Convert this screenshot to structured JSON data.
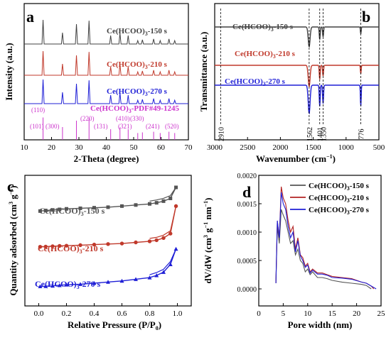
{
  "chart_data": [
    {
      "panel": "a",
      "type": "line",
      "xlabel": "2-Theta (degree)",
      "ylabel": "Intensity (a.u.)",
      "xlim": [
        10,
        70
      ],
      "xticks": [
        "10",
        "20",
        "30",
        "40",
        "50",
        "60",
        "70"
      ],
      "grid": false,
      "peaks": [
        16.9,
        24.0,
        29.1,
        33.7,
        41.6,
        45.0,
        48.0,
        51.5,
        53.2,
        57.3,
        59.7,
        62.9,
        65.0
      ],
      "series": [
        {
          "name": "Ce(HCOO)3-150 s",
          "color": "#404040",
          "heights": [
            0.85,
            0.4,
            0.7,
            0.82,
            0.3,
            0.38,
            0.3,
            0.12,
            0.15,
            0.18,
            0.12,
            0.18,
            0.12
          ]
        },
        {
          "name": "Ce(HCOO)3-210 s",
          "color": "#c0392b",
          "heights": [
            0.85,
            0.4,
            0.7,
            0.82,
            0.3,
            0.38,
            0.3,
            0.12,
            0.15,
            0.18,
            0.12,
            0.18,
            0.12
          ]
        },
        {
          "name": "Ce(HCOO)3-270 s",
          "color": "#1f1fd6",
          "heights": [
            0.85,
            0.4,
            0.7,
            0.82,
            0.3,
            0.38,
            0.3,
            0.12,
            0.15,
            0.18,
            0.12,
            0.18,
            0.12
          ]
        }
      ],
      "reference": {
        "name": "Ce(HCOO)3-PDF#49-1245",
        "color": "#cc33cc",
        "lines": [
          16.9,
          24.0,
          29.1,
          33.7,
          41.6,
          45.0,
          48.0,
          51.5,
          53.2,
          57.3,
          59.7,
          62.9,
          65.0
        ],
        "hkl": [
          "(110)",
          "(101)",
          "(300)",
          "(220)",
          "(131)",
          "(410)",
          "(330)",
          "(321)",
          "(241)",
          "(520)"
        ]
      }
    },
    {
      "panel": "b",
      "type": "line",
      "xlabel": "Wavenumber (cm−1)",
      "ylabel": "Transmittance (a.u.)",
      "xlim": [
        3000,
        500
      ],
      "xticks": [
        "3000",
        "2500",
        "2000",
        "1500",
        "1000",
        "500"
      ],
      "grid": false,
      "bands": [
        2910,
        1562,
        1401,
        1350,
        776
      ],
      "band_labels": [
        "2910",
        "1562",
        "1401",
        "1350",
        "776"
      ],
      "series": [
        {
          "name": "Ce(HCOO)3-150 s",
          "color": "#404040"
        },
        {
          "name": "Ce(HCOO)3-210 s",
          "color": "#c0392b"
        },
        {
          "name": "Ce(HCOO)3-270 s",
          "color": "#1f1fd6"
        }
      ]
    },
    {
      "panel": "c",
      "type": "line",
      "xlabel": "Relative Pressure (P/P0)",
      "ylabel": "Quantity adsorbed (cm3 g−1)",
      "xlim": [
        -0.1,
        1.1
      ],
      "xticks": [
        "0.0",
        "0.2",
        "0.4",
        "0.6",
        "0.8",
        "1.0"
      ],
      "grid": false,
      "series": [
        {
          "name": "Ce(HCOO)3-150 s",
          "color": "#555555",
          "marker": "square",
          "x": [
            0.01,
            0.05,
            0.1,
            0.15,
            0.2,
            0.3,
            0.4,
            0.5,
            0.6,
            0.7,
            0.8,
            0.85,
            0.9,
            0.95,
            0.99
          ],
          "y": [
            0.785,
            0.79,
            0.795,
            0.8,
            0.805,
            0.81,
            0.815,
            0.82,
            0.83,
            0.84,
            0.85,
            0.86,
            0.875,
            0.9,
            1.0
          ]
        },
        {
          "name": "Ce(HCOO)3-210 s",
          "color": "#c0392b",
          "marker": "circle",
          "x": [
            0.01,
            0.05,
            0.1,
            0.15,
            0.2,
            0.3,
            0.4,
            0.5,
            0.6,
            0.7,
            0.8,
            0.85,
            0.9,
            0.95,
            0.99
          ],
          "y": [
            0.46,
            0.462,
            0.465,
            0.468,
            0.47,
            0.475,
            0.48,
            0.485,
            0.49,
            0.5,
            0.51,
            0.52,
            0.54,
            0.58,
            0.83
          ]
        },
        {
          "name": "Ce(HCOO)3-270 s",
          "color": "#1f1fd6",
          "marker": "triangle",
          "x": [
            0.01,
            0.05,
            0.1,
            0.15,
            0.2,
            0.3,
            0.4,
            0.5,
            0.6,
            0.7,
            0.8,
            0.85,
            0.9,
            0.95,
            0.99
          ],
          "y": [
            0.1,
            0.102,
            0.105,
            0.11,
            0.115,
            0.12,
            0.13,
            0.14,
            0.15,
            0.165,
            0.18,
            0.2,
            0.23,
            0.3,
            0.44
          ]
        }
      ]
    },
    {
      "panel": "d",
      "type": "line",
      "xlabel": "Pore width (nm)",
      "ylabel": "dV/dW (cm3 g−1 nm−1)",
      "xlim": [
        0,
        25
      ],
      "ylim": [
        -0.0003,
        0.002
      ],
      "xticks": [
        "0",
        "5",
        "10",
        "15",
        "20",
        "25"
      ],
      "yticks": [
        "0.0000",
        "0.0005",
        "0.0010",
        "0.0015",
        "0.0020"
      ],
      "legend": "top-right",
      "grid": false,
      "series": [
        {
          "name": "Ce(HCOO)3-150 s",
          "color": "#555555",
          "x": [
            3.5,
            3.8,
            4.2,
            4.6,
            5.0,
            5.5,
            6.0,
            6.5,
            7.0,
            7.5,
            8.0,
            8.5,
            9.0,
            9.5,
            10.0,
            10.5,
            11.0,
            12.0,
            13.0,
            14.0,
            15.0,
            17.0,
            19.0,
            21.0,
            22.0,
            23.0
          ],
          "y": [
            0.0001,
            0.0011,
            0.0008,
            0.0014,
            0.0013,
            0.0012,
            0.001,
            0.0008,
            0.00085,
            0.0006,
            0.0007,
            0.0005,
            0.00045,
            0.0003,
            0.00035,
            0.00025,
            0.0003,
            0.0002,
            0.0002,
            0.00018,
            0.00015,
            0.00012,
            0.0001,
            8e-05,
            6e-05,
            0.0
          ]
        },
        {
          "name": "Ce(HCOO)3-210 s",
          "color": "#b22222",
          "x": [
            3.5,
            3.8,
            4.2,
            4.6,
            5.0,
            5.5,
            6.0,
            6.5,
            7.0,
            7.5,
            8.0,
            8.5,
            9.0,
            9.5,
            10.0,
            10.5,
            11.0,
            12.0,
            13.0,
            14.0,
            15.0,
            17.0,
            19.0,
            21.0,
            22.0,
            23.0,
            23.5
          ],
          "y": [
            0.0001,
            0.0012,
            0.0009,
            0.0018,
            0.0016,
            0.0015,
            0.0012,
            0.001,
            0.0011,
            0.0007,
            0.0009,
            0.0006,
            0.00055,
            0.0004,
            0.00045,
            0.0003,
            0.00035,
            0.00028,
            0.00028,
            0.00025,
            0.00022,
            0.0002,
            0.00018,
            0.00012,
            0.0001,
            5e-05,
            0.0
          ]
        },
        {
          "name": "Ce(HCOO)3-270 s",
          "color": "#1f1fd6",
          "x": [
            3.5,
            3.8,
            4.2,
            4.6,
            5.0,
            5.5,
            6.0,
            6.5,
            7.0,
            7.5,
            8.0,
            8.5,
            9.0,
            9.5,
            10.0,
            10.5,
            11.0,
            12.0,
            13.0,
            14.0,
            15.0,
            17.0,
            19.0,
            21.0,
            22.0,
            23.0,
            24.0
          ],
          "y": [
            0.0001,
            0.0012,
            0.0009,
            0.0017,
            0.0015,
            0.0014,
            0.0011,
            0.0009,
            0.001,
            0.00065,
            0.00085,
            0.00058,
            0.0005,
            0.00038,
            0.00042,
            0.00028,
            0.00033,
            0.00026,
            0.00026,
            0.00024,
            0.0002,
            0.00019,
            0.00017,
            0.00012,
            0.0001,
            5e-05,
            0.0
          ]
        }
      ]
    }
  ]
}
